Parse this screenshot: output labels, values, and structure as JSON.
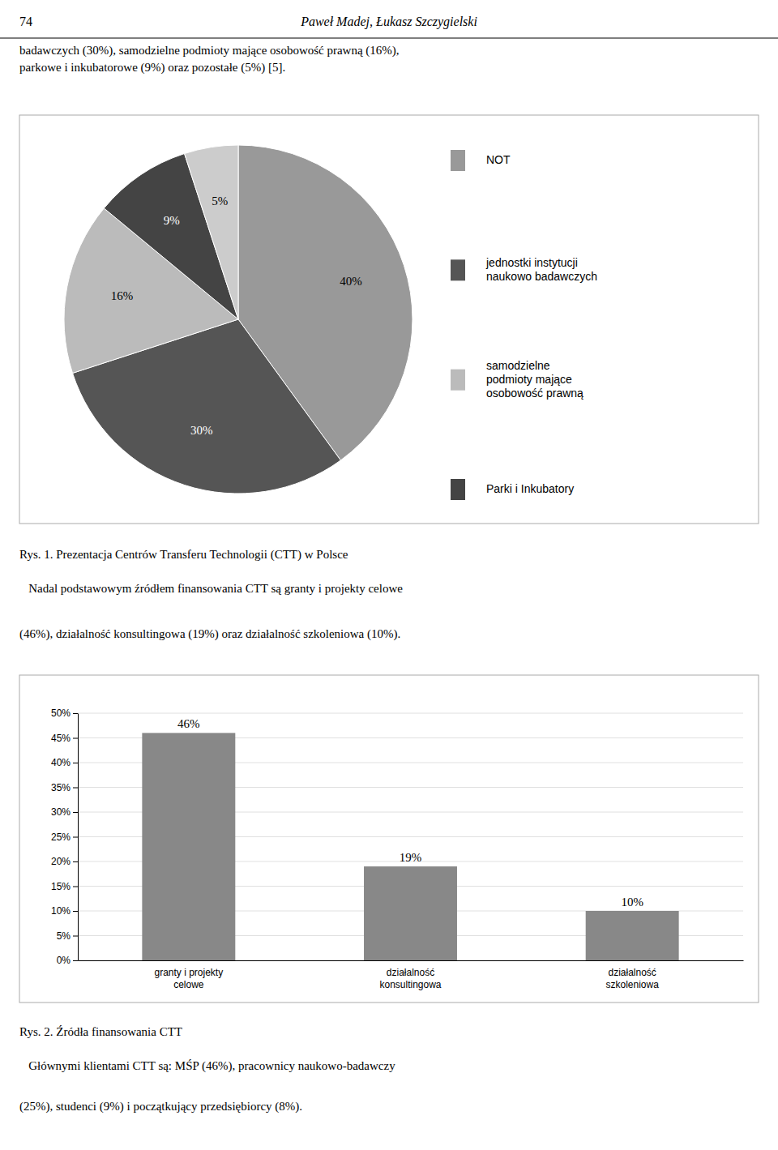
{
  "chart_data": [
    {
      "type": "pie",
      "title": "Rys. 1. Prezentacja Centrów Transferu Technologii (CTT) w Polsce",
      "annotations": [
        "74",
        "Paweł Madej, Łukasz Szczygielski",
        "badawczych (30%), samodzielne podmioty mające osobowość prawną (16%),\nparkowe i inkubatorowe (9%) oraz pozostałe (5%) [5].",
        "   Nadal podstawowym źródłem finansowania CTT są granty i projekty celowe",
        "(46%), działalność konsultingowa (19%) oraz działalność szkoleniowa (10%)."
      ],
      "categories": [
        "NOT",
        "jednostki instytucji\nnaukowo badawczych",
        "samodzielne\npodmioty mające\nosobowość prawną",
        "Parki i Inkubatory",
        null
      ],
      "values": [
        40,
        30,
        16,
        9,
        5
      ],
      "value_labels": [
        "40%",
        "30%",
        "16%",
        "9%",
        "5%"
      ],
      "colors": [
        "#999999",
        "#555555",
        "#bbbbbb",
        "#444444",
        "#cccccc"
      ],
      "data_labels": true,
      "legend": "right"
    },
    {
      "type": "bar",
      "title": "Rys. 2. Źródła finansowania CTT",
      "annotations": [
        "   Głównymi klientami CTT są: MŚP (46%), pracownicy naukowo-badawczy",
        "(25%), studenci (9%) i początkujący przedsiębiorcy (8%)."
      ],
      "categories": [
        "granty i projekty\ncelowe",
        "działalność\nkonsultingowa",
        "działalność\nszkoleniowa"
      ],
      "values": [
        46,
        19,
        10
      ],
      "value_labels": [
        "46%",
        "19%",
        "10%"
      ],
      "color": "#888888",
      "ylim": [
        0,
        50
      ],
      "yticks": [
        {
          "value": 0,
          "label": "0%"
        },
        {
          "value": 5,
          "label": "5%"
        },
        {
          "value": 10,
          "label": "10%"
        },
        {
          "value": 15,
          "label": "15%"
        },
        {
          "value": 20,
          "label": "20%"
        },
        {
          "value": 25,
          "label": "25%"
        },
        {
          "value": 30,
          "label": "30%"
        },
        {
          "value": 35,
          "label": "35%"
        },
        {
          "value": 40,
          "label": "40%"
        },
        {
          "value": 45,
          "label": "45%"
        },
        {
          "value": 50,
          "label": "50%"
        }
      ],
      "grid": true,
      "data_labels": true
    }
  ]
}
